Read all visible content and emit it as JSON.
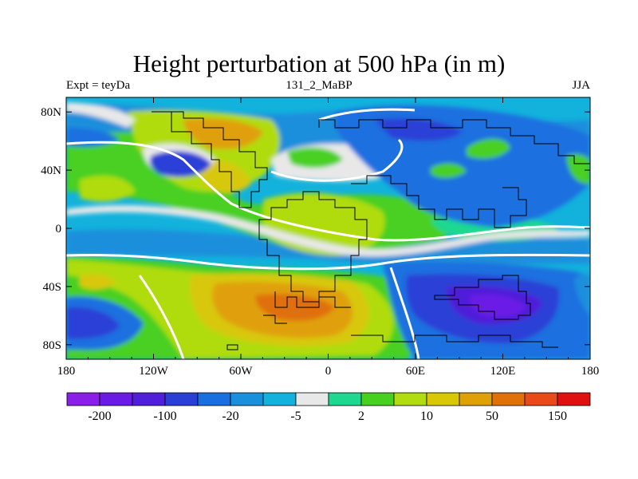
{
  "title": "Height perturbation at 500 hPa (in m)",
  "left_string": "Expt = teyDa",
  "center_string": "131_2_MaBP",
  "right_string": "JJA",
  "map": {
    "lon_range": [
      -180,
      180
    ],
    "lat_range": [
      -90,
      90
    ],
    "x_ticks": [
      {
        "label": "180",
        "lon": -180
      },
      {
        "label": "120W",
        "lon": -120
      },
      {
        "label": "60W",
        "lon": -60
      },
      {
        "label": "0",
        "lon": 0
      },
      {
        "label": "60E",
        "lon": 60
      },
      {
        "label": "120E",
        "lon": 120
      },
      {
        "label": "180",
        "lon": 180
      }
    ],
    "y_ticks": [
      {
        "label": "80N",
        "lat": 80
      },
      {
        "label": "40N",
        "lat": 40
      },
      {
        "label": "0",
        "lat": 0
      },
      {
        "label": "40S",
        "lat": -40
      },
      {
        "label": "80S",
        "lat": -80
      }
    ]
  },
  "colorbar": {
    "colors": [
      "#8a1fe8",
      "#6a1be6",
      "#4f1fd9",
      "#2a3fd6",
      "#1a6fe0",
      "#1a8fdc",
      "#12b2dc",
      "#e8e8e8",
      "#1ed890",
      "#48d020",
      "#b0dc10",
      "#d8c808",
      "#e0a008",
      "#e07008",
      "#e84a18",
      "#e01010"
    ],
    "labels": [
      {
        "text": "-200",
        "index": 1
      },
      {
        "text": "-100",
        "index": 3
      },
      {
        "text": "-20",
        "index": 5
      },
      {
        "text": "-5",
        "index": 7
      },
      {
        "text": "2",
        "index": 9
      },
      {
        "text": "10",
        "index": 11
      },
      {
        "text": "50",
        "index": 13
      },
      {
        "text": "150",
        "index": 15
      }
    ]
  }
}
